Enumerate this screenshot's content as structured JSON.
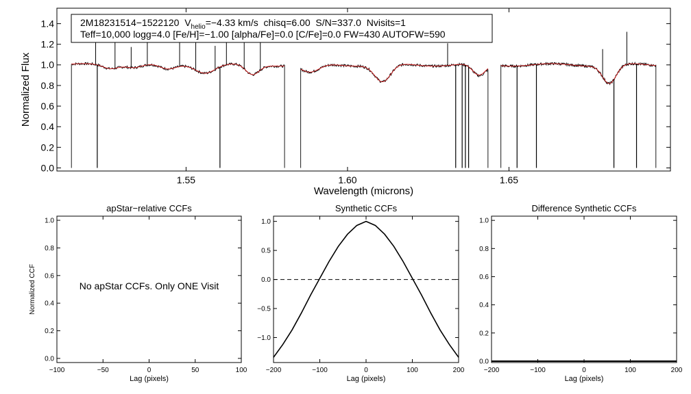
{
  "figure": {
    "colors": {
      "axis": "#000000",
      "observed": "#000000",
      "model": "#d02020",
      "background": "#ffffff"
    }
  },
  "chart_data": [
    {
      "id": "spectrum",
      "type": "line",
      "title": "",
      "xlabel": "Wavelength (microns)",
      "ylabel": "Normalized Flux",
      "xlim": [
        1.51,
        1.7
      ],
      "ylim": [
        -0.03,
        1.55
      ],
      "xticks": [
        1.55,
        1.6,
        1.65
      ],
      "xtick_labels": [
        "1.55",
        "1.60",
        "1.65"
      ],
      "yticks": [
        0.0,
        0.2,
        0.4,
        0.6,
        0.8,
        1.0,
        1.2,
        1.4
      ],
      "ytick_labels": [
        "0.0",
        "0.2",
        "0.4",
        "0.6",
        "0.8",
        "1.0",
        "1.2",
        "1.4"
      ],
      "annotation": {
        "star_id": "2M18231514−1522120",
        "vhelio_symbol": "V",
        "vhelio_subscript": "helio",
        "vhelio_value": "=−4.33 km/s",
        "chisq": "chisq=6.00",
        "snr": "S/N=337.0",
        "nvisits": "Nvisits=1",
        "params": "Teff=10,000 logg=4.0 [Fe/H]=−1.00 [alpha/Fe]=0.0 [C/Fe]=0.0 FW=430 AUTOFW=590"
      },
      "chips": [
        [
          1.5145,
          1.5805
        ],
        [
          1.5855,
          1.6435
        ],
        [
          1.6475,
          1.6955
        ]
      ],
      "absorption_features": [
        {
          "center": 1.5264,
          "depth": 0.03,
          "width": 0.003
        },
        {
          "center": 1.5341,
          "depth": 0.02,
          "width": 0.003
        },
        {
          "center": 1.5443,
          "depth": 0.05,
          "width": 0.0035
        },
        {
          "center": 1.556,
          "depth": 0.07,
          "width": 0.004
        },
        {
          "center": 1.5705,
          "depth": 0.1,
          "width": 0.003
        },
        {
          "center": 1.5885,
          "depth": 0.08,
          "width": 0.004
        },
        {
          "center": 1.6109,
          "depth": 0.17,
          "width": 0.0035
        },
        {
          "center": 1.6407,
          "depth": 0.11,
          "width": 0.0028
        },
        {
          "center": 1.6811,
          "depth": 0.18,
          "width": 0.003
        }
      ],
      "emission_spikes": [
        1.522,
        1.528,
        1.533,
        1.538,
        1.548,
        1.553,
        1.559,
        1.5625,
        1.568,
        1.573,
        1.631,
        1.679,
        1.6865
      ],
      "bad_pixel_drops": [
        1.5225,
        1.5605,
        1.6335,
        1.6355,
        1.6365,
        1.6375,
        1.6525,
        1.6585,
        1.6825,
        1.6895
      ]
    },
    {
      "id": "ccf-apstar",
      "type": "line",
      "title": "apStar−relative CCFs",
      "xlabel": "Lag (pixels)",
      "ylabel": "Normalized CCF",
      "xlim": [
        -100,
        100
      ],
      "ylim": [
        -0.03,
        1.03
      ],
      "xticks": [
        -100,
        -50,
        0,
        50,
        100
      ],
      "xtick_labels": [
        "−100",
        "−50",
        "0",
        "50",
        "100"
      ],
      "yticks": [
        0.0,
        0.2,
        0.4,
        0.6,
        0.8,
        1.0
      ],
      "ytick_labels": [
        "0.0",
        "0.2",
        "0.4",
        "0.6",
        "0.8",
        "1.0"
      ],
      "message": "No apStar CCFs.  Only ONE Visit",
      "series": []
    },
    {
      "id": "ccf-synthetic",
      "type": "line",
      "title": "Synthetic CCFs",
      "xlabel": "Lag (pixels)",
      "ylabel": "",
      "xlim": [
        -200,
        200
      ],
      "ylim": [
        -1.43,
        1.09
      ],
      "xticks": [
        -200,
        -100,
        0,
        100,
        200
      ],
      "xtick_labels": [
        "−200",
        "−100",
        "0",
        "100",
        "200"
      ],
      "yticks": [
        -1.0,
        -0.5,
        0.0,
        0.5,
        1.0
      ],
      "ytick_labels": [
        "−1.0",
        "−0.5",
        "0.0",
        "0.5",
        "1.0"
      ],
      "reference_line_y": 0.0,
      "series": [
        {
          "name": "synthetic CCF",
          "x": [
            -200,
            -180,
            -160,
            -140,
            -120,
            -100,
            -80,
            -60,
            -40,
            -20,
            0,
            20,
            40,
            60,
            80,
            100,
            120,
            140,
            160,
            180,
            200
          ],
          "y": [
            -1.34,
            -1.12,
            -0.87,
            -0.58,
            -0.27,
            0.02,
            0.31,
            0.57,
            0.78,
            0.93,
            1.0,
            0.93,
            0.78,
            0.57,
            0.31,
            0.02,
            -0.27,
            -0.58,
            -0.87,
            -1.12,
            -1.34
          ]
        }
      ]
    },
    {
      "id": "ccf-difference",
      "type": "line",
      "title": "Difference Synthetic CCFs",
      "xlabel": "Lag (pixels)",
      "ylabel": "",
      "xlim": [
        -200,
        200
      ],
      "ylim": [
        -0.01,
        1.03
      ],
      "xticks": [
        -200,
        -100,
        0,
        100,
        200
      ],
      "xtick_labels": [
        "−200",
        "−100",
        "0",
        "100",
        "200"
      ],
      "yticks": [
        0.0,
        0.2,
        0.4,
        0.6,
        0.8,
        1.0
      ],
      "ytick_labels": [
        "0.0",
        "0.2",
        "0.4",
        "0.6",
        "0.8",
        "1.0"
      ],
      "series": [
        {
          "name": "difference CCF",
          "x": [
            -200,
            200
          ],
          "y": [
            0.0,
            0.0
          ]
        }
      ]
    }
  ]
}
